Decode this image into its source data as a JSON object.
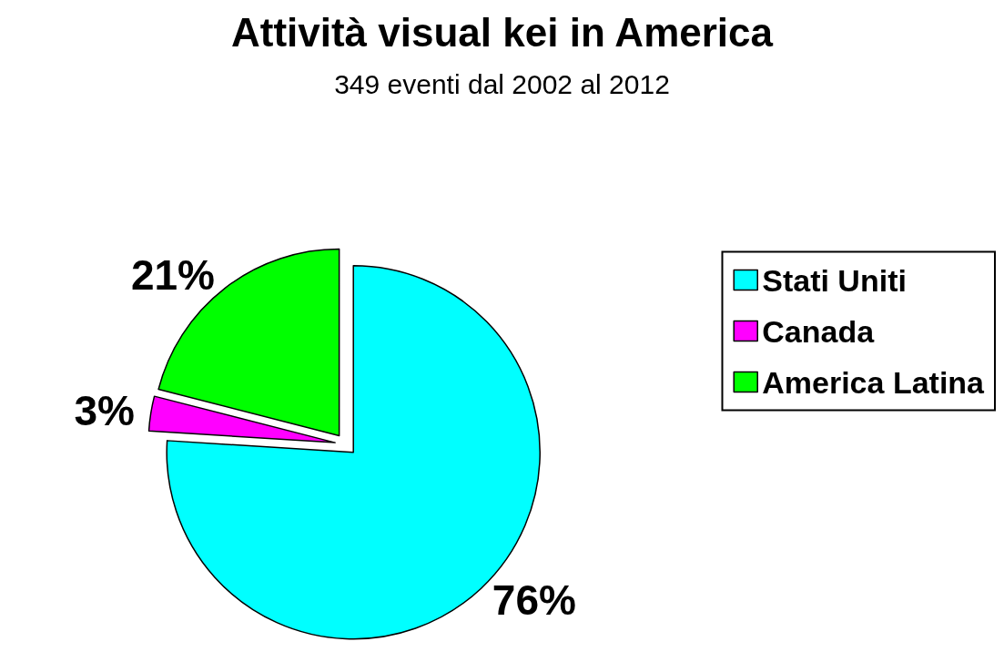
{
  "chart_data": {
    "type": "pie",
    "title": "Attività visual kei in America",
    "subtitle": "349 eventi dal 2002 al 2012",
    "categories": [
      "Stati Uniti",
      "Canada",
      "America Latina"
    ],
    "values": [
      76,
      3,
      21
    ],
    "colors": [
      "#00ffff",
      "#ff00ff",
      "#00ff00"
    ],
    "value_labels": [
      "76%",
      "3%",
      "21%"
    ],
    "legend": "right"
  }
}
